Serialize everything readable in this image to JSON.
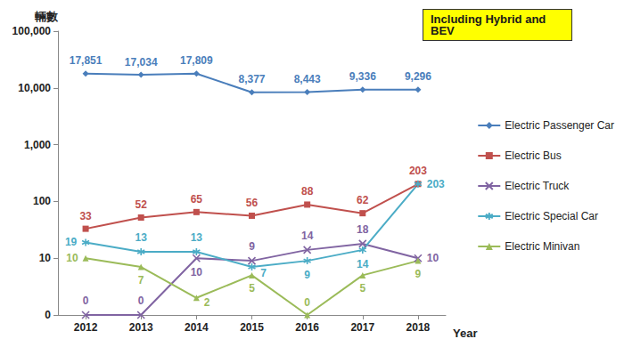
{
  "chart_data": {
    "type": "line",
    "ylabel": "輛數",
    "xlabel": "Year",
    "annotation": "Including Hybrid and BEV",
    "categories": [
      "2012",
      "2013",
      "2014",
      "2015",
      "2016",
      "2017",
      "2018"
    ],
    "series": [
      {
        "name": "Electric Passenger Car",
        "color": "#4a7ebb",
        "marker": "diamond",
        "values": [
          17851,
          17034,
          17809,
          8377,
          8443,
          9336,
          9296
        ],
        "value_labels": [
          "17,851",
          "17,034",
          "17,809",
          "8,377",
          "8,443",
          "9,336",
          "9,296"
        ]
      },
      {
        "name": "Electric Bus",
        "color": "#c0504d",
        "marker": "square",
        "values": [
          33,
          52,
          65,
          56,
          88,
          62,
          203
        ]
      },
      {
        "name": "Electric Truck",
        "color": "#8064a2",
        "marker": "x",
        "values": [
          0,
          0,
          10,
          9,
          14,
          18,
          10
        ]
      },
      {
        "name": "Electric Special Car",
        "color": "#4bacc6",
        "marker": "star",
        "values": [
          19,
          13,
          13,
          7,
          9,
          14,
          203
        ]
      },
      {
        "name": "Electric Minivan",
        "color": "#9bbb59",
        "marker": "triangle",
        "values": [
          10,
          7,
          2,
          5,
          0,
          5,
          9
        ]
      }
    ],
    "log": "y",
    "ylim": [
      0,
      100000
    ],
    "yticks": [
      0,
      10,
      100,
      {
        "value": 1000,
        "label": "1,000"
      },
      {
        "value": 10000,
        "label": "10,000"
      },
      {
        "value": 100000,
        "label": "100,000"
      }
    ],
    "grid": false,
    "legend": "right",
    "data_labels": true
  }
}
